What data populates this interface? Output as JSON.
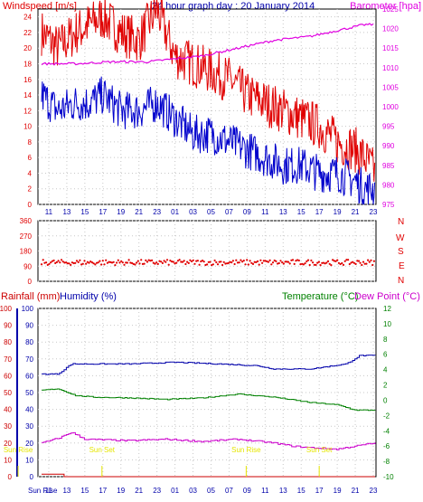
{
  "colors": {
    "wind": "#e00000",
    "gust": "#0000cc",
    "baro": "#e000e0",
    "rain": "#cc0000",
    "humidity": "#0000aa",
    "temp": "#008000",
    "dew": "#cc00cc",
    "sun": "#e6e600",
    "grid": "#c8c8c8",
    "frame": "#000000",
    "dir": "#e00000"
  },
  "header": {
    "wind_label": "Windspeed [m/s]",
    "title": "24 hour graph day : 20 January 2014",
    "baro_label": "Barometer [hpa]"
  },
  "direction_labels": [
    "N",
    "W",
    "S",
    "E",
    "N"
  ],
  "bottom_header": {
    "rainfall": "Rainfall (mm)",
    "humidity": "Humidity (%)",
    "temperature": "Temperature (°C)",
    "dewpoint": "Dew Point (°C)"
  },
  "sun_events": [
    {
      "label": "Sun Rise",
      "hour": 7.6
    },
    {
      "label": "Sun Set",
      "hour": 16.9
    },
    {
      "label": "Sun Rise",
      "hour": 32.9
    },
    {
      "label": "Sun Set",
      "hour": 41.0
    }
  ],
  "chart_data": [
    {
      "type": "line",
      "title": "24 hour graph day : 20 January 2014",
      "x_ticks": [
        "11",
        "13",
        "15",
        "17",
        "19",
        "21",
        "23",
        "01",
        "03",
        "05",
        "07",
        "09",
        "11",
        "13",
        "15",
        "17",
        "19",
        "21",
        "23"
      ],
      "xlim_hours": [
        9.8,
        47.3
      ],
      "left_axis": {
        "label": "Windspeed [m/s]",
        "ylim": [
          0,
          25
        ],
        "ticks": [
          0,
          2,
          4,
          6,
          8,
          10,
          12,
          14,
          16,
          18,
          20,
          22,
          24
        ]
      },
      "right_axis": {
        "label": "Barometer [hpa]",
        "ylim": [
          975,
          1025
        ],
        "ticks": [
          975,
          980,
          985,
          990,
          995,
          1000,
          1005,
          1010,
          1015,
          1020,
          1025
        ]
      },
      "series": [
        {
          "name": "gust",
          "points": [
            [
              10.2,
              22
            ],
            [
              12,
              20
            ],
            [
              14,
              22
            ],
            [
              15.5,
              23
            ],
            [
              17,
              24
            ],
            [
              19,
              22
            ],
            [
              21,
              21
            ],
            [
              23,
              25
            ],
            [
              25,
              19
            ],
            [
              27,
              18
            ],
            [
              29,
              17
            ],
            [
              31,
              16
            ],
            [
              33,
              14
            ],
            [
              35,
              13
            ],
            [
              37,
              12
            ],
            [
              39,
              11
            ],
            [
              41,
              10
            ],
            [
              43,
              8
            ],
            [
              45,
              7
            ],
            [
              46,
              6
            ],
            [
              47.2,
              4
            ]
          ]
        },
        {
          "name": "average",
          "points": [
            [
              10.2,
              14
            ],
            [
              12,
              12
            ],
            [
              14,
              13
            ],
            [
              15.5,
              13
            ],
            [
              17,
              14
            ],
            [
              19,
              12
            ],
            [
              21,
              12
            ],
            [
              23,
              13
            ],
            [
              25,
              11
            ],
            [
              27,
              9
            ],
            [
              29,
              9
            ],
            [
              31,
              8
            ],
            [
              33,
              7
            ],
            [
              35,
              6
            ],
            [
              37,
              5
            ],
            [
              39,
              5
            ],
            [
              41,
              4
            ],
            [
              43,
              4
            ],
            [
              45,
              3
            ],
            [
              46,
              2
            ],
            [
              47.2,
              2
            ]
          ]
        },
        {
          "name": "barometer",
          "axis": "right",
          "points": [
            [
              10.2,
              1011
            ],
            [
              14,
              1011
            ],
            [
              18,
              1011.5
            ],
            [
              22,
              1011.5
            ],
            [
              24,
              1012
            ],
            [
              28,
              1013
            ],
            [
              32,
              1015
            ],
            [
              36,
              1017
            ],
            [
              40,
              1018
            ],
            [
              44,
              1020
            ],
            [
              46,
              1021
            ],
            [
              47.2,
              1021
            ]
          ]
        }
      ]
    },
    {
      "type": "scatter",
      "title": "Wind direction",
      "ylim": [
        0,
        360
      ],
      "ticks": [
        0,
        90,
        180,
        270,
        360
      ],
      "mean_deg": 112,
      "spread_deg": 16,
      "x_range_hours": [
        10.2,
        47.2
      ]
    },
    {
      "type": "line",
      "x_ticks": [
        "Sun Rise",
        "11",
        "13",
        "15",
        "17",
        "19",
        "21",
        "23",
        "01",
        "03",
        "05",
        "07",
        "09",
        "11",
        "13",
        "15",
        "17",
        "19",
        "21",
        "23"
      ],
      "left_axis_a": {
        "label": "Rainfall (mm)",
        "ylim": [
          0,
          100
        ],
        "ticks": [
          0,
          10,
          20,
          30,
          40,
          50,
          60,
          70,
          80,
          90,
          100
        ]
      },
      "left_axis_b": {
        "label": "Humidity (%)",
        "ylim": [
          0,
          100
        ],
        "ticks": [
          0,
          10,
          20,
          30,
          40,
          50,
          60,
          70,
          80,
          90,
          100
        ]
      },
      "right_axis": {
        "label": "Temperature (°C)",
        "ylim": [
          -10,
          12
        ],
        "ticks": [
          -10,
          -8,
          -6,
          -4,
          -2,
          0,
          2,
          4,
          6,
          8,
          10,
          12
        ]
      },
      "series": [
        {
          "name": "humidity",
          "points": [
            [
              10.2,
              61
            ],
            [
              12,
              61
            ],
            [
              13.5,
              67
            ],
            [
              15,
              67
            ],
            [
              20,
              67
            ],
            [
              25,
              68
            ],
            [
              30,
              67
            ],
            [
              34,
              66
            ],
            [
              36,
              64
            ],
            [
              40,
              64
            ],
            [
              44,
              67
            ],
            [
              45.5,
              72
            ],
            [
              47.2,
              72
            ]
          ]
        },
        {
          "name": "temperature",
          "points": [
            [
              10.2,
              1.3
            ],
            [
              12,
              1.5
            ],
            [
              14,
              0.6
            ],
            [
              16,
              0.4
            ],
            [
              20,
              0.3
            ],
            [
              24,
              0.1
            ],
            [
              28,
              0.3
            ],
            [
              32,
              0.8
            ],
            [
              36,
              0.4
            ],
            [
              40,
              -0.3
            ],
            [
              43,
              -0.6
            ],
            [
              45,
              -1.3
            ],
            [
              47.2,
              -1.3
            ]
          ]
        },
        {
          "name": "dewpoint",
          "points": [
            [
              10.2,
              -5.6
            ],
            [
              12,
              -5
            ],
            [
              13.5,
              -4.2
            ],
            [
              15,
              -5.1
            ],
            [
              20,
              -5.3
            ],
            [
              24,
              -5.1
            ],
            [
              28,
              -5.4
            ],
            [
              32,
              -5.1
            ],
            [
              36,
              -5.6
            ],
            [
              38,
              -6.0
            ],
            [
              40,
              -6.2
            ],
            [
              43,
              -6.4
            ],
            [
              45,
              -6.0
            ],
            [
              47.2,
              -5.6
            ]
          ]
        },
        {
          "name": "rainfall",
          "points": [
            [
              10.2,
              1.5
            ],
            [
              12.5,
              1.5
            ],
            [
              12.6,
              0
            ],
            [
              47.2,
              0
            ]
          ]
        }
      ]
    }
  ]
}
